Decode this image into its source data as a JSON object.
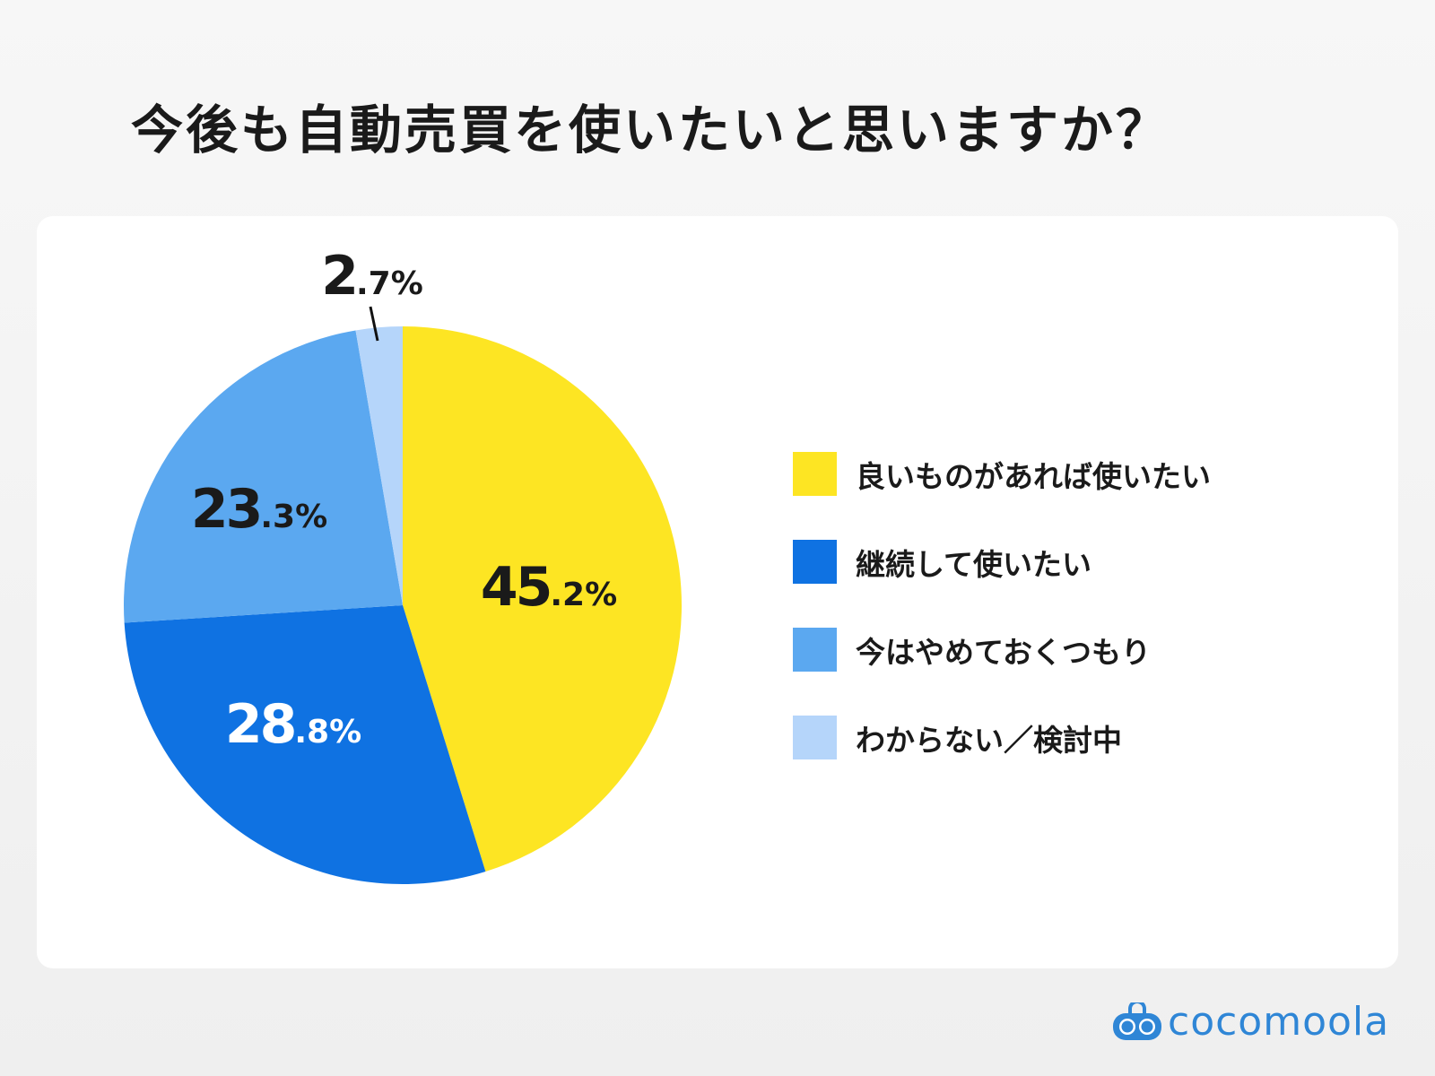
{
  "title": "今後も自動売買を使いたいと思いますか？",
  "chart_data": {
    "type": "pie",
    "title": "今後も自動売買を使いたいと思いますか？",
    "categories": [
      "良いものがあれば使いたい",
      "継続して使いたい",
      "今はやめておくつもり",
      "わからない／検討中"
    ],
    "values": [
      45.2,
      28.8,
      23.3,
      2.7
    ],
    "labels": [
      {
        "int": "45",
        "dec": ".2%",
        "color": "#1a1a1a"
      },
      {
        "int": "28",
        "dec": ".8%",
        "color": "#ffffff"
      },
      {
        "int": "23",
        "dec": ".3%",
        "color": "#1a1a1a"
      },
      {
        "int": "2",
        "dec": ".7%",
        "color": "#1a1a1a"
      }
    ],
    "colors": [
      "#FDE523",
      "#0F72E2",
      "#5BA8F0",
      "#B5D5FA"
    ],
    "start": "top",
    "direction": "clockwise",
    "legend_position": "right"
  },
  "legend": [
    {
      "label": "良いものがあれば使いたい",
      "color": "#FDE523"
    },
    {
      "label": "継続して使いたい",
      "color": "#0F72E2"
    },
    {
      "label": "今はやめておくつもり",
      "color": "#5BA8F0"
    },
    {
      "label": "わからない／検討中",
      "color": "#B5D5FA"
    }
  ],
  "logo": {
    "text": "cocomoola",
    "color": "#2f86d6"
  }
}
